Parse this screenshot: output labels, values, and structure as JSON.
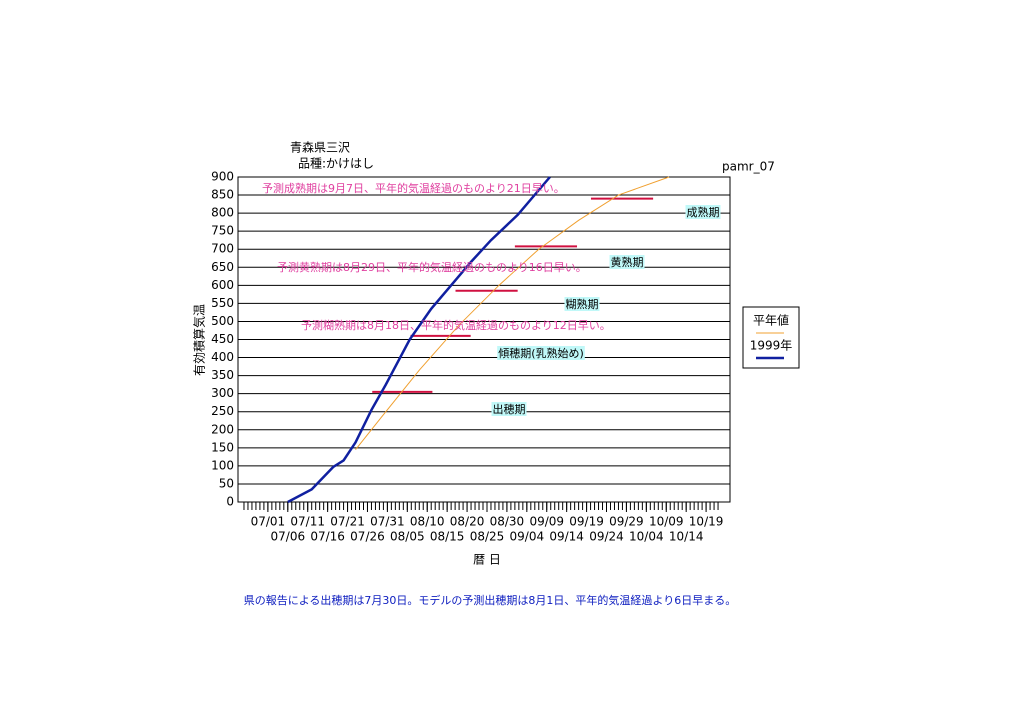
{
  "chart_data": {
    "type": "line",
    "title": "青森県三沢",
    "subtitle": "品種:かけはし",
    "code": "pamr_07",
    "y_label": "有効積算気温",
    "x_label": "暦 日",
    "footnote": "県の報告による出穂期は7月30日。モデルの予測出穂期は8月1日、平年的気温経過より6日早まる。",
    "xlim": [
      -7.5,
      116
    ],
    "ylim": [
      0,
      900
    ],
    "yticks": [
      0,
      50,
      100,
      150,
      200,
      250,
      300,
      350,
      400,
      450,
      500,
      550,
      600,
      650,
      700,
      750,
      800,
      850,
      900
    ],
    "xticks": [
      {
        "value": 0,
        "label": "07/01"
      },
      {
        "value": 5,
        "label": "07/06"
      },
      {
        "value": 10,
        "label": "07/11"
      },
      {
        "value": 15,
        "label": "07/16"
      },
      {
        "value": 20,
        "label": "07/21"
      },
      {
        "value": 25,
        "label": "07/26"
      },
      {
        "value": 30,
        "label": "07/31"
      },
      {
        "value": 35,
        "label": "08/05"
      },
      {
        "value": 40,
        "label": "08/10"
      },
      {
        "value": 45,
        "label": "08/15"
      },
      {
        "value": 50,
        "label": "08/20"
      },
      {
        "value": 55,
        "label": "08/25"
      },
      {
        "value": 60,
        "label": "08/30"
      },
      {
        "value": 65,
        "label": "09/04"
      },
      {
        "value": 70,
        "label": "09/09"
      },
      {
        "value": 75,
        "label": "09/14"
      },
      {
        "value": 80,
        "label": "09/19"
      },
      {
        "value": 85,
        "label": "09/24"
      },
      {
        "value": 90,
        "label": "09/29"
      },
      {
        "value": 95,
        "label": "10/04"
      },
      {
        "value": 100,
        "label": "10/09"
      },
      {
        "value": 105,
        "label": "10/14"
      },
      {
        "value": 110,
        "label": "10/19"
      }
    ],
    "grid": true,
    "series": [
      {
        "name": "平年値",
        "color": "#f0a030",
        "x": [
          22,
          28,
          38,
          48,
          58,
          68,
          78,
          88,
          100.7
        ],
        "values": [
          145,
          228,
          365,
          490,
          600,
          700,
          780,
          850,
          900
        ]
      },
      {
        "name": "1999年",
        "color": "#1020a0",
        "x": [
          5,
          11,
          16.4,
          19,
          22,
          26,
          29.6,
          35.6,
          41,
          46,
          51,
          56,
          62.7,
          70.8
        ],
        "values": [
          0,
          35,
          97,
          115,
          165,
          255,
          325,
          450,
          535,
          600,
          665,
          725,
          795,
          900
        ]
      }
    ],
    "stage_markers": [
      {
        "x_start": 26.2,
        "x_end": 41.3,
        "value": 305
      },
      {
        "x_start": 35.8,
        "x_end": 50.9,
        "value": 460
      },
      {
        "x_start": 47.1,
        "x_end": 62.7,
        "value": 585
      },
      {
        "x_start": 62,
        "x_end": 77.6,
        "value": 708
      },
      {
        "x_start": 81.1,
        "x_end": 96.7,
        "value": 840
      }
    ],
    "marker_color": "#d01040",
    "stage_labels": [
      "出穂期",
      "傾穂期(乳熟始め)",
      "糊熟期",
      "黄熟期",
      "成熟期"
    ],
    "annotations": [
      "予測成熟期は9月7日、平年的気温経過のものより21日早い。",
      "予測黄熟期は8月29日、平年的気温経過のものより16日早い。",
      "予測糊熟期は8月18日、平年的気温経過のものより12日早い。"
    ]
  }
}
